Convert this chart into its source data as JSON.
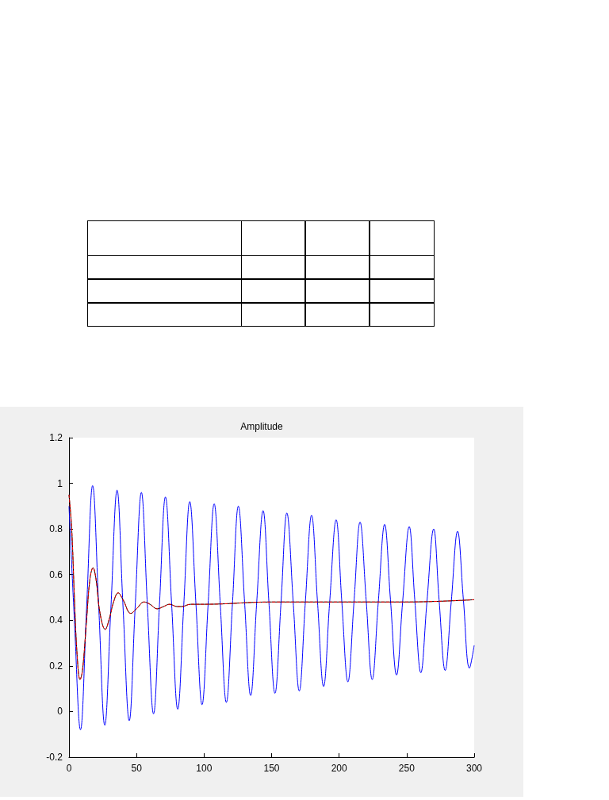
{
  "chart_data": {
    "type": "line",
    "title": "Amplitude",
    "xlim": [
      0,
      300
    ],
    "ylim": [
      -0.2,
      1.2
    ],
    "xticks": [
      0,
      50,
      100,
      150,
      200,
      250,
      300
    ],
    "yticks": [
      -0.2,
      0,
      0.2,
      0.4,
      0.6,
      0.8,
      1,
      1.2
    ],
    "marker": "none",
    "series": [
      {
        "color": "#0000ff",
        "x": [
          0,
          4,
          8.5,
          13,
          17.5,
          22,
          26.5,
          31,
          35.6,
          40,
          44.6,
          49,
          53.6,
          58,
          62.6,
          67,
          71.4,
          76,
          80.5,
          85,
          89.4,
          94,
          98.5,
          103,
          107.5,
          112,
          116.5,
          121,
          125.4,
          130,
          134.5,
          139,
          143.7,
          148,
          152.5,
          157,
          161.3,
          166,
          170.5,
          175,
          179.6,
          184,
          188.5,
          193,
          197.8,
          202,
          206.5,
          211,
          215.5,
          220,
          224.5,
          229,
          233.7,
          238,
          242.5,
          247,
          251.9,
          256,
          260.5,
          265,
          270,
          274,
          278.5,
          283,
          287.7,
          292,
          296.5,
          300
        ],
        "values": [
          0.9,
          0.4,
          -0.08,
          0.45,
          0.99,
          0.46,
          -0.06,
          0.45,
          0.97,
          0.46,
          -0.04,
          0.46,
          0.96,
          0.47,
          -0.01,
          0.47,
          0.94,
          0.47,
          0.01,
          0.47,
          0.92,
          0.47,
          0.03,
          0.47,
          0.91,
          0.47,
          0.04,
          0.47,
          0.9,
          0.48,
          0.07,
          0.48,
          0.88,
          0.48,
          0.08,
          0.48,
          0.87,
          0.48,
          0.09,
          0.48,
          0.86,
          0.48,
          0.11,
          0.48,
          0.84,
          0.48,
          0.13,
          0.48,
          0.83,
          0.49,
          0.14,
          0.48,
          0.82,
          0.49,
          0.16,
          0.48,
          0.81,
          0.49,
          0.17,
          0.48,
          0.8,
          0.49,
          0.18,
          0.48,
          0.79,
          0.49,
          0.19,
          0.29
        ]
      },
      {
        "color": "#000000",
        "x": [
          0,
          2,
          4,
          6,
          8.2,
          10,
          13,
          15.5,
          17.8,
          20,
          23,
          26.8,
          30,
          33,
          36.4,
          40,
          45.8,
          50,
          55.6,
          60,
          65.3,
          70,
          74.5,
          80,
          83.5,
          90,
          100,
          150,
          200,
          250,
          300
        ],
        "values": [
          0.95,
          0.8,
          0.5,
          0.25,
          0.14,
          0.18,
          0.4,
          0.58,
          0.63,
          0.58,
          0.43,
          0.36,
          0.41,
          0.48,
          0.52,
          0.49,
          0.43,
          0.45,
          0.48,
          0.47,
          0.45,
          0.46,
          0.47,
          0.46,
          0.46,
          0.47,
          0.47,
          0.48,
          0.48,
          0.48,
          0.49
        ]
      },
      {
        "color": "#ff0000",
        "line_style": "dashed",
        "x": [
          0,
          2,
          4,
          6,
          8.2,
          10,
          13,
          15.5,
          17.8,
          20,
          23,
          26.8,
          30,
          33,
          36.4,
          40,
          45.8,
          50,
          55.6,
          60,
          65.3,
          70,
          74.5,
          80,
          83.5,
          90,
          100,
          150,
          200,
          250,
          300
        ],
        "values": [
          0.95,
          0.8,
          0.5,
          0.25,
          0.14,
          0.18,
          0.4,
          0.58,
          0.63,
          0.58,
          0.43,
          0.36,
          0.41,
          0.48,
          0.52,
          0.49,
          0.43,
          0.45,
          0.48,
          0.47,
          0.45,
          0.46,
          0.47,
          0.46,
          0.46,
          0.47,
          0.47,
          0.48,
          0.48,
          0.48,
          0.49
        ]
      }
    ]
  }
}
